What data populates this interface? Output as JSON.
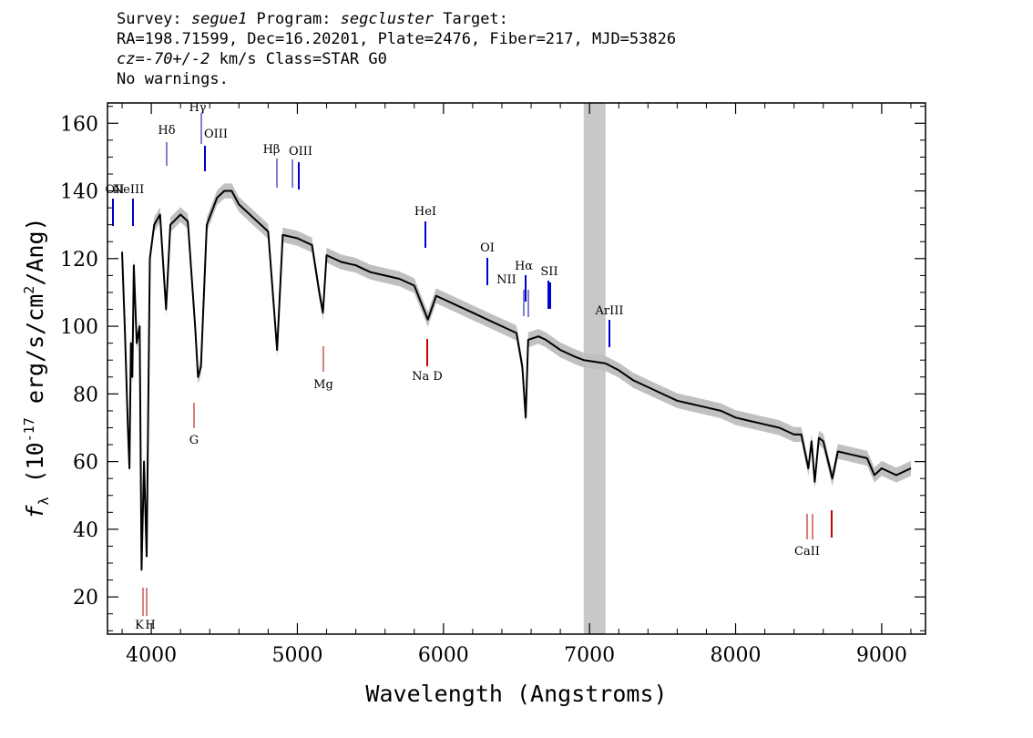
{
  "header": {
    "line1_prefix": "Survey: ",
    "survey": "segue1",
    "line1_mid": " Program: ",
    "program": "segcluster",
    "line1_suffix": " Target:",
    "line2": "RA=198.71599, Dec=16.20201, Plate=2476, Fiber=217, MJD=53826",
    "cz_label": "cz=",
    "cz_value": "-70+/-2",
    "line3_suffix": " km/s Class=STAR G0",
    "line4": "No warnings."
  },
  "chart_data": {
    "type": "line",
    "xlabel": "Wavelength (Angstroms)",
    "ylabel": "f_λ (10^-17 erg/s/cm^2/Ang)",
    "xlim": [
      3700,
      9300
    ],
    "ylim": [
      9,
      166
    ],
    "x_ticks": [
      4000,
      5000,
      6000,
      7000,
      8000,
      9000
    ],
    "y_ticks": [
      20,
      40,
      60,
      80,
      100,
      120,
      140,
      160
    ],
    "masked_region": [
      6960,
      7110
    ],
    "colors": {
      "flux": "#000000",
      "error_band": "#c0c0c0",
      "mask": "#c8c8c8",
      "emission": "#0000cc",
      "absorption": "#cc0000"
    },
    "series": [
      {
        "x": [
          3800,
          3820,
          3840,
          3850,
          3860,
          3870,
          3880,
          3900,
          3920,
          3933,
          3950,
          3968,
          3990,
          4020,
          4060,
          4101,
          4130,
          4200,
          4250,
          4300,
          4320,
          4340,
          4380,
          4450,
          4500,
          4550,
          4600,
          4700,
          4800,
          4861,
          4900,
          5000,
          5100,
          5150,
          5175,
          5200,
          5300,
          5400,
          5500,
          5600,
          5700,
          5800,
          5893,
          5950,
          6000,
          6100,
          6200,
          6300,
          6400,
          6500,
          6540,
          6563,
          6580,
          6650,
          6700,
          6800,
          6900,
          6960,
          7110,
          7200,
          7300,
          7400,
          7500,
          7600,
          7700,
          7800,
          7900,
          8000,
          8100,
          8200,
          8300,
          8400,
          8450,
          8498,
          8520,
          8542,
          8570,
          8600,
          8662,
          8700,
          8800,
          8900,
          8950,
          9000,
          9100,
          9200
        ],
        "y": [
          122,
          98,
          70,
          58,
          95,
          85,
          118,
          95,
          100,
          28,
          60,
          32,
          120,
          130,
          133,
          105,
          130,
          133,
          131,
          100,
          85,
          88,
          130,
          138,
          140,
          140,
          136,
          132,
          128,
          93,
          127,
          126,
          124,
          110,
          104,
          121,
          119,
          118,
          116,
          115,
          114,
          112,
          102,
          109,
          108,
          106,
          104,
          102,
          100,
          98,
          88,
          73,
          96,
          97,
          96,
          93,
          91,
          90,
          89,
          87,
          84,
          82,
          80,
          78,
          77,
          76,
          75,
          73,
          72,
          71,
          70,
          68,
          68,
          58,
          66,
          54,
          67,
          66,
          55,
          63,
          62,
          61,
          56,
          58,
          56,
          58
        ]
      }
    ],
    "line_markers": {
      "emission": [
        {
          "label": "OII",
          "x": 3727
        },
        {
          "label": "NeIII",
          "x": 3869
        },
        {
          "label": "Hδ",
          "x": 4102
        },
        {
          "label": "Hγ",
          "x": 4340
        },
        {
          "label": "OIII",
          "x": 4363
        },
        {
          "label": "Hβ",
          "x": 4861
        },
        {
          "label": "OIII",
          "x": 4959
        },
        {
          "label": "",
          "x": 5007
        },
        {
          "label": "HeI",
          "x": 5876
        },
        {
          "label": "OI",
          "x": 6300
        },
        {
          "label": "NII",
          "x": 6548
        },
        {
          "label": "Hα",
          "x": 6563
        },
        {
          "label": "",
          "x": 6584
        },
        {
          "label": "SII",
          "x": 6717
        },
        {
          "label": "",
          "x": 6731
        },
        {
          "label": "ArIII",
          "x": 7135
        }
      ],
      "absorption": [
        {
          "label": "K",
          "x": 3934
        },
        {
          "label": "H",
          "x": 3969
        },
        {
          "label": "G",
          "x": 4304
        },
        {
          "label": "Mg",
          "x": 5175
        },
        {
          "label": "Na D",
          "x": 5894
        },
        {
          "label": "CaII",
          "x": 8498
        },
        {
          "label": "",
          "x": 8542
        },
        {
          "label": "",
          "x": 8662
        }
      ]
    }
  }
}
